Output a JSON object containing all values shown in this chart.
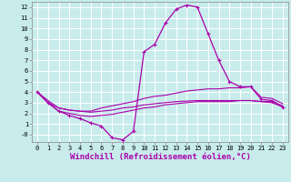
{
  "background_color": "#c8ecec",
  "grid_color": "#aadddd",
  "line_color": "#aa00aa",
  "xlabel": "Windchill (Refroidissement éolien,°C)",
  "xlabel_fontsize": 6.5,
  "ytick_labels": [
    "-0",
    "1",
    "2",
    "3",
    "4",
    "5",
    "6",
    "7",
    "8",
    "9",
    "10",
    "11",
    "12"
  ],
  "ytick_vals": [
    0,
    1,
    2,
    3,
    4,
    5,
    6,
    7,
    8,
    9,
    10,
    11,
    12
  ],
  "xtick_vals": [
    0,
    1,
    2,
    3,
    4,
    5,
    6,
    7,
    8,
    9,
    10,
    11,
    12,
    13,
    14,
    15,
    16,
    17,
    18,
    19,
    20,
    21,
    22,
    23
  ],
  "ylim": [
    -0.7,
    12.5
  ],
  "xlim": [
    -0.5,
    23.5
  ],
  "series": [
    {
      "x": [
        0,
        1,
        2,
        3,
        4,
        5,
        6,
        7,
        8,
        9,
        10,
        11,
        12,
        13,
        14,
        15,
        16,
        17,
        18,
        19,
        20,
        21,
        22,
        23
      ],
      "y": [
        4.0,
        3.0,
        2.2,
        1.8,
        1.5,
        1.1,
        0.8,
        -0.3,
        -0.5,
        0.3,
        7.8,
        8.5,
        10.5,
        11.8,
        12.2,
        12.0,
        9.5,
        7.0,
        5.0,
        4.5,
        4.5,
        3.3,
        3.2,
        2.6
      ],
      "has_markers": true,
      "lw": 0.9,
      "marker": "+"
    },
    {
      "x": [
        0,
        1,
        2,
        3,
        4,
        5,
        6,
        7,
        8,
        9,
        10,
        11,
        12,
        13,
        14,
        15,
        16,
        17,
        18,
        19,
        20,
        21,
        22,
        23
      ],
      "y": [
        4.0,
        3.2,
        2.5,
        2.3,
        2.2,
        2.2,
        2.5,
        2.7,
        2.9,
        3.1,
        3.4,
        3.6,
        3.7,
        3.9,
        4.1,
        4.2,
        4.3,
        4.3,
        4.4,
        4.4,
        4.5,
        3.5,
        3.4,
        2.9
      ],
      "has_markers": false,
      "lw": 0.8
    },
    {
      "x": [
        0,
        1,
        2,
        3,
        4,
        5,
        6,
        7,
        8,
        9,
        10,
        11,
        12,
        13,
        14,
        15,
        16,
        17,
        18,
        19,
        20,
        21,
        22,
        23
      ],
      "y": [
        4.0,
        3.0,
        2.2,
        2.0,
        1.8,
        1.7,
        1.8,
        1.9,
        2.1,
        2.3,
        2.5,
        2.6,
        2.8,
        2.9,
        3.0,
        3.1,
        3.1,
        3.1,
        3.1,
        3.2,
        3.2,
        3.1,
        3.1,
        2.7
      ],
      "has_markers": false,
      "lw": 0.8
    },
    {
      "x": [
        0,
        1,
        2,
        3,
        4,
        5,
        6,
        7,
        8,
        9,
        10,
        11,
        12,
        13,
        14,
        15,
        16,
        17,
        18,
        19,
        20,
        21,
        22,
        23
      ],
      "y": [
        4.0,
        3.0,
        2.5,
        2.3,
        2.2,
        2.1,
        2.2,
        2.3,
        2.5,
        2.6,
        2.8,
        2.9,
        3.0,
        3.1,
        3.15,
        3.2,
        3.2,
        3.2,
        3.2,
        3.2,
        3.2,
        3.1,
        3.0,
        2.6
      ],
      "has_markers": false,
      "lw": 0.8
    }
  ]
}
